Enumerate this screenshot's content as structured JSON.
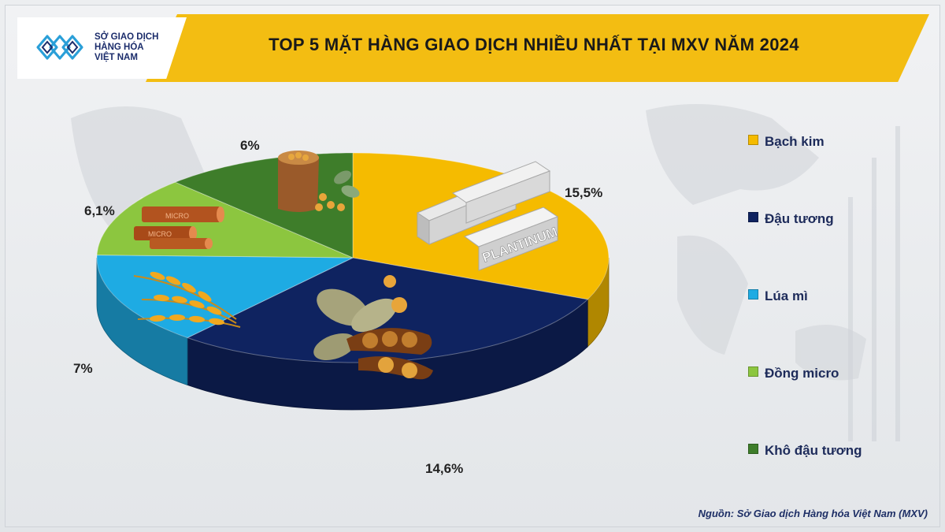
{
  "header": {
    "logo_lines": [
      "SỞ GIAO DỊCH",
      "HÀNG HÓA",
      "VIỆT NAM"
    ],
    "title": "TOP 5 MẶT HÀNG GIAO DỊCH NHIỀU NHẤT TẠI MXV NĂM 2024"
  },
  "chart_data": {
    "type": "pie",
    "title": "TOP 5 MẶT HÀNG GIAO DỊCH NHIỀU NHẤT TẠI MXV NĂM 2024",
    "categories": [
      "Bạch kim",
      "Đậu tương",
      "Lúa mì",
      "Đồng micro",
      "Khô đậu tương"
    ],
    "values": [
      15.5,
      14.6,
      7,
      6.1,
      6
    ],
    "value_labels": [
      "15,5%",
      "14,6%",
      "7%",
      "6,1%",
      "6%"
    ],
    "colors": [
      "#f5bb00",
      "#0f2360",
      "#1eabe3",
      "#8cc63f",
      "#3e7d2a"
    ],
    "legend_placement": "right"
  },
  "illustrations": {
    "platinum_text": "PLANTINUM",
    "copper_text": "MICRO"
  },
  "source": "Nguồn: Sở Giao dịch Hàng hóa Việt Nam (MXV)",
  "icons": [
    "logo-icon",
    "platinum-bars-icon",
    "soybean-icon",
    "wheat-icon",
    "copper-pipes-icon",
    "soybean-meal-sack-icon"
  ]
}
